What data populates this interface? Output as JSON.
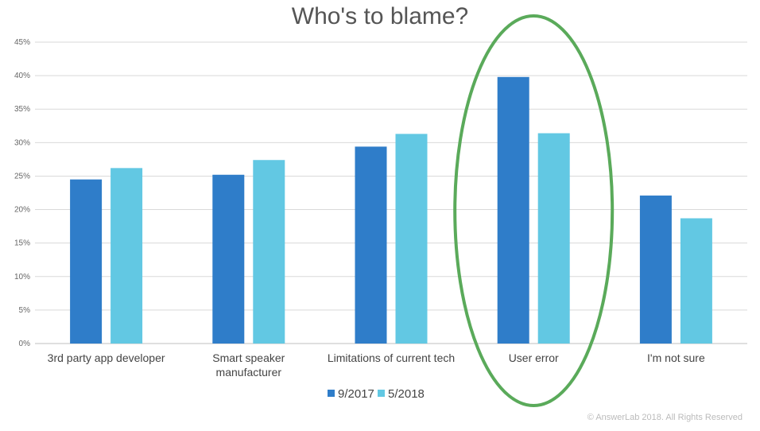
{
  "chart_data": {
    "type": "bar",
    "title": "Who's to blame?",
    "categories": [
      [
        "3rd party app developer"
      ],
      [
        "Smart speaker",
        "manufacturer"
      ],
      [
        "Limitations of current tech"
      ],
      [
        "User error"
      ],
      [
        "I'm not sure"
      ]
    ],
    "series": [
      {
        "name": "9/2017",
        "color": "#2f7dc9",
        "values": [
          24.5,
          25.2,
          29.4,
          39.8,
          22.1
        ]
      },
      {
        "name": "5/2018",
        "color": "#62c8e3",
        "values": [
          26.2,
          27.4,
          31.3,
          31.4,
          18.7
        ]
      }
    ],
    "ylim": [
      0,
      45
    ],
    "yticks": [
      "0%",
      "5%",
      "10%",
      "15%",
      "20%",
      "25%",
      "30%",
      "35%",
      "40%",
      "45%"
    ],
    "grid": true,
    "legend_position": "bottom",
    "highlight": {
      "category_index": 3,
      "shape": "ellipse",
      "color": "#5aaa5a"
    }
  },
  "footer": {
    "copyright": "© AnswerLab 2018. All Rights Reserved"
  }
}
